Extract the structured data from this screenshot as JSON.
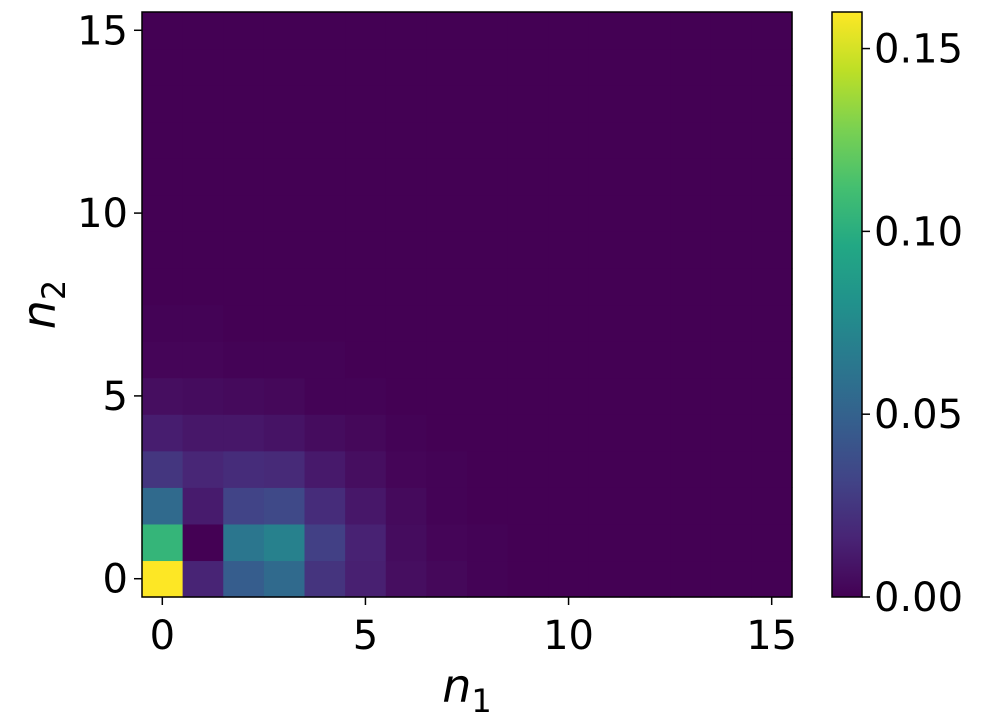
{
  "chart_data": {
    "type": "heatmap",
    "title": "",
    "xlabel": "n",
    "xlabel_subscript": "1",
    "ylabel": "n",
    "ylabel_subscript": "2",
    "x": [
      0,
      1,
      2,
      3,
      4,
      5,
      6,
      7,
      8,
      9,
      10,
      11,
      12,
      13,
      14,
      15
    ],
    "y": [
      0,
      1,
      2,
      3,
      4,
      5,
      6,
      7,
      8,
      9,
      10,
      11,
      12,
      13,
      14,
      15
    ],
    "x_ticks": [
      0,
      5,
      10,
      15
    ],
    "y_ticks": [
      0,
      5,
      10,
      15
    ],
    "colormap": "viridis",
    "colorbar": {
      "min": 0.0,
      "max": 0.16,
      "ticks": [
        "0.00",
        "0.05",
        "0.10",
        "0.15"
      ]
    },
    "values": [
      [
        0.16,
        0.016,
        0.047,
        0.055,
        0.024,
        0.014,
        0.006,
        0.003,
        0.001,
        0,
        0,
        0,
        0,
        0,
        0,
        0
      ],
      [
        0.105,
        0.0,
        0.063,
        0.07,
        0.03,
        0.015,
        0.005,
        0.002,
        0.001,
        0,
        0,
        0,
        0,
        0,
        0,
        0
      ],
      [
        0.055,
        0.012,
        0.032,
        0.035,
        0.02,
        0.01,
        0.004,
        0.001,
        0,
        0,
        0,
        0,
        0,
        0,
        0,
        0
      ],
      [
        0.025,
        0.017,
        0.02,
        0.019,
        0.011,
        0.006,
        0.002,
        0.001,
        0,
        0,
        0,
        0,
        0,
        0,
        0,
        0
      ],
      [
        0.013,
        0.01,
        0.01,
        0.008,
        0.005,
        0.003,
        0.001,
        0,
        0,
        0,
        0,
        0,
        0,
        0,
        0,
        0
      ],
      [
        0.006,
        0.005,
        0.004,
        0.003,
        0.001,
        0.001,
        0,
        0,
        0,
        0,
        0,
        0,
        0,
        0,
        0,
        0
      ],
      [
        0.002,
        0.002,
        0.001,
        0.001,
        0.001,
        0,
        0,
        0,
        0,
        0,
        0,
        0,
        0,
        0,
        0,
        0
      ],
      [
        0.001,
        0.001,
        0,
        0,
        0,
        0,
        0,
        0,
        0,
        0,
        0,
        0,
        0,
        0,
        0,
        0
      ],
      [
        0,
        0,
        0,
        0,
        0,
        0,
        0,
        0,
        0,
        0,
        0,
        0,
        0,
        0,
        0,
        0
      ],
      [
        0,
        0,
        0,
        0,
        0,
        0,
        0,
        0,
        0,
        0,
        0,
        0,
        0,
        0,
        0,
        0
      ],
      [
        0,
        0,
        0,
        0,
        0,
        0,
        0,
        0,
        0,
        0,
        0,
        0,
        0,
        0,
        0,
        0
      ],
      [
        0,
        0,
        0,
        0,
        0,
        0,
        0,
        0,
        0,
        0,
        0,
        0,
        0,
        0,
        0,
        0
      ],
      [
        0,
        0,
        0,
        0,
        0,
        0,
        0,
        0,
        0,
        0,
        0,
        0,
        0,
        0,
        0,
        0
      ],
      [
        0,
        0,
        0,
        0,
        0,
        0,
        0,
        0,
        0,
        0,
        0,
        0,
        0,
        0,
        0,
        0
      ],
      [
        0,
        0,
        0,
        0,
        0,
        0,
        0,
        0,
        0,
        0,
        0,
        0,
        0,
        0,
        0,
        0
      ],
      [
        0,
        0,
        0,
        0,
        0,
        0,
        0,
        0,
        0,
        0,
        0,
        0,
        0,
        0,
        0,
        0
      ]
    ]
  }
}
